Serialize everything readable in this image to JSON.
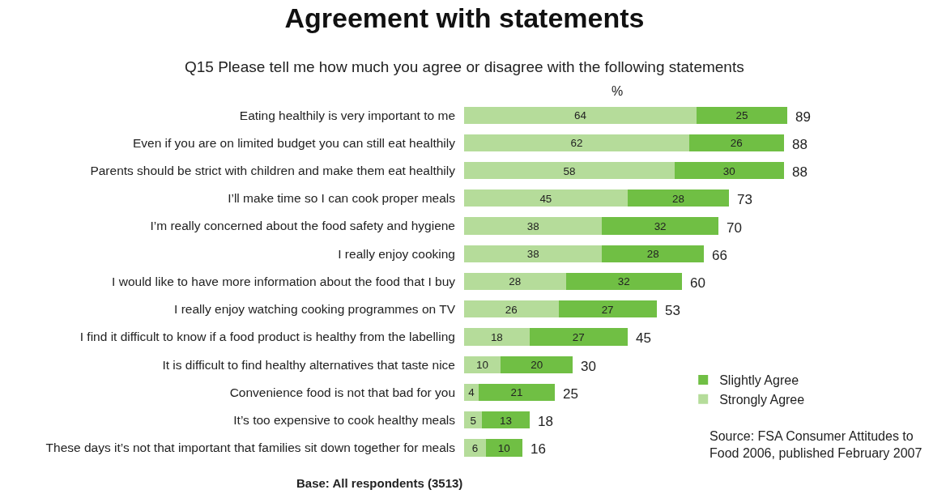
{
  "chart_data": {
    "type": "bar",
    "orientation": "horizontal",
    "stacked": true,
    "title": "Agreement with statements",
    "subtitle": "Q15 Please tell me how much you agree or disagree with the following statements",
    "categories": [
      "Eating healthily is very important to me",
      "Even if you are on limited budget you can still eat healthily",
      "Parents should be strict with children and make them eat healthily",
      "I’ll make time so I can cook proper meals",
      "I’m really concerned about the food safety and hygiene",
      "I really enjoy cooking",
      "I would like to have more information about the food that I buy",
      "I really enjoy watching cooking programmes on TV",
      "I find it difficult to know if a food product is healthy from the labelling",
      "It is difficult to find healthy alternatives that taste nice",
      "Convenience food is not that bad for you",
      "It’s too expensive to cook healthy meals",
      "These days it’s not that important that families sit down together for meals"
    ],
    "series": [
      {
        "name": "Strongly Agree",
        "color": "#b5dc9a",
        "values": [
          64,
          62,
          58,
          45,
          38,
          38,
          28,
          26,
          18,
          10,
          4,
          5,
          6
        ]
      },
      {
        "name": "Slightly Agree",
        "color": "#70bf44",
        "values": [
          25,
          26,
          30,
          28,
          32,
          28,
          32,
          27,
          27,
          20,
          21,
          13,
          10
        ]
      }
    ],
    "totals": [
      "89",
      "88",
      "88",
      "73",
      "70",
      "66",
      "60",
      "53",
      "45",
      "30",
      "25",
      "18",
      "16"
    ],
    "data_labels": true,
    "tick_labels": "y",
    "legend": "bottom right",
    "annotations": [
      "%",
      "Base: All respondents (3513)",
      "Source: FSA Consumer Attitudes to Food 2006, published February 2007"
    ]
  }
}
